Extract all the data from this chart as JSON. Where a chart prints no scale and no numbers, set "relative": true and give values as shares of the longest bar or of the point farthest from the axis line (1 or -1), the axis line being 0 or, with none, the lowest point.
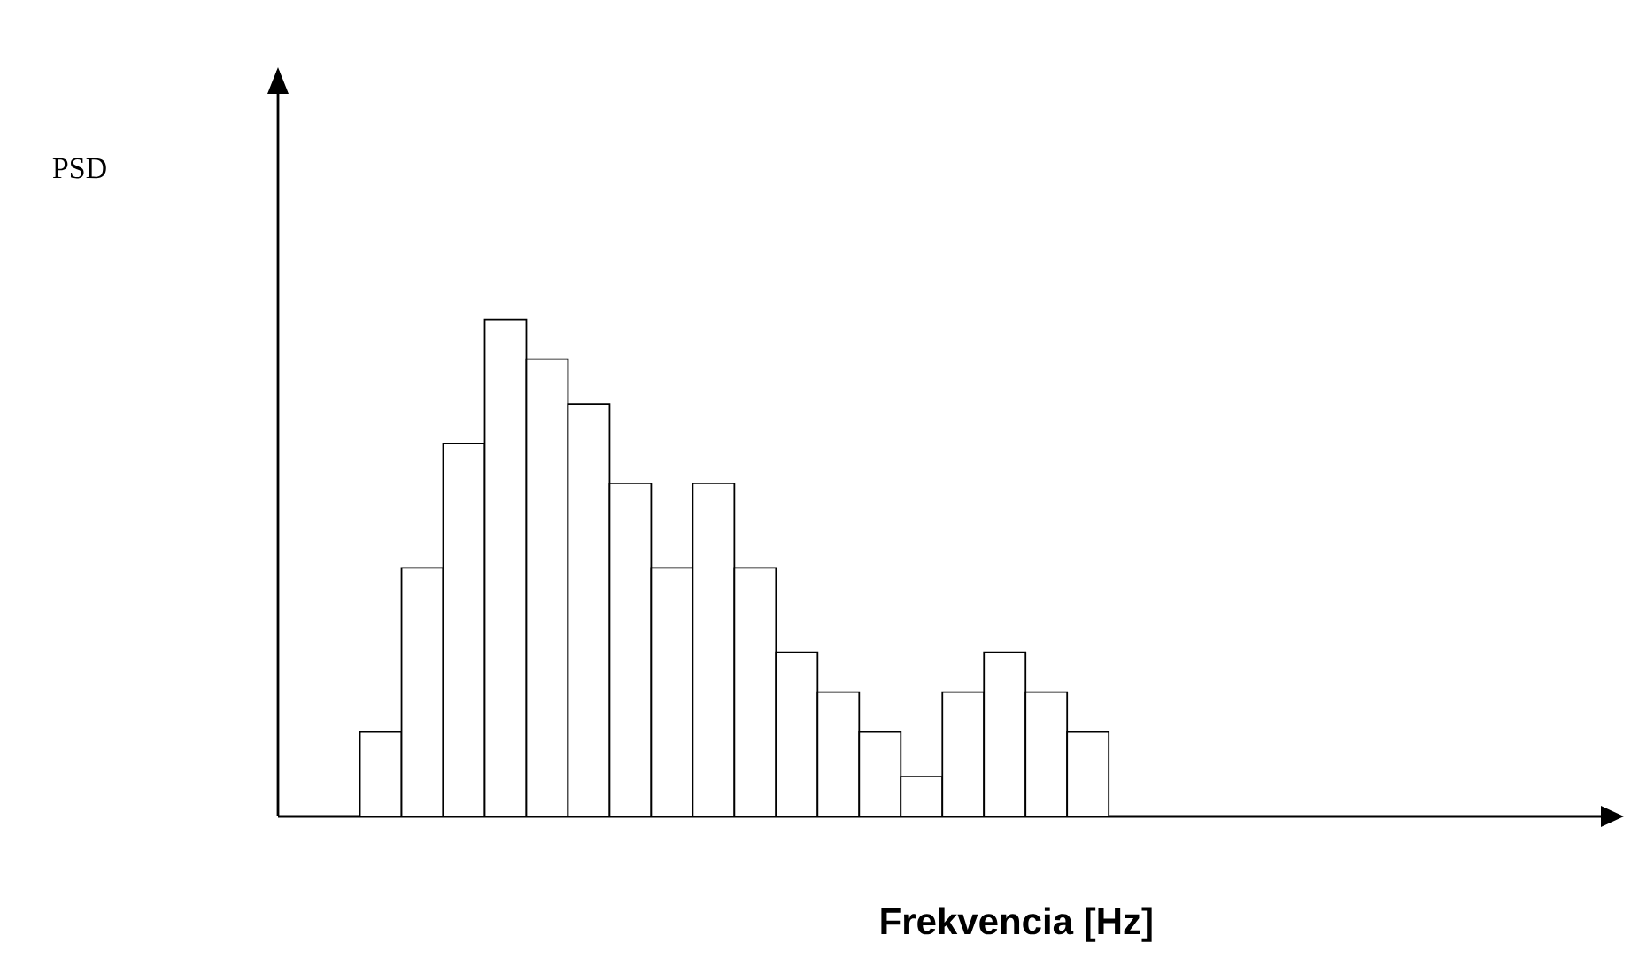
{
  "chart_data": {
    "type": "bar",
    "relative": true,
    "xlabel": "Frekvencia [Hz]",
    "annotations": [
      "PSD"
    ],
    "color": "#ffffff",
    "categories": [
      null,
      null,
      null,
      null,
      null,
      null,
      null,
      null,
      null,
      null,
      null,
      null,
      null,
      null,
      null,
      null,
      null,
      null
    ],
    "values": [
      0.17,
      0.5,
      0.75,
      1,
      0.92,
      0.83,
      0.67,
      0.5,
      0.67,
      0.5,
      0.33,
      0.25,
      0.17,
      0.08,
      0.25,
      0.33,
      0.25,
      0.17
    ]
  }
}
